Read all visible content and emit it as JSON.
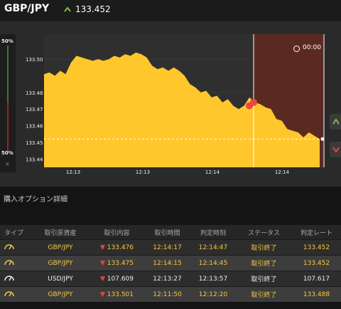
{
  "header": {
    "pair": "GBP/JPY",
    "price": "133.452"
  },
  "chart_data": {
    "type": "area",
    "yticks": [
      "133.50",
      "133.48",
      "133.47",
      "133.46",
      "133.45",
      "133.44"
    ],
    "xticks": [
      "12:13",
      "12:13",
      "12:14",
      "12:14"
    ],
    "ylim": [
      133.435,
      133.515
    ],
    "series": [
      {
        "values": [
          133.491,
          133.492,
          133.49,
          133.493,
          133.491,
          133.498,
          133.502,
          133.501,
          133.5,
          133.499,
          133.5,
          133.499,
          133.5,
          133.502,
          133.501,
          133.503,
          133.502,
          133.504,
          133.503,
          133.501,
          133.496,
          133.494,
          133.495,
          133.493,
          133.495,
          133.493,
          133.49,
          133.485,
          133.483,
          133.48,
          133.481,
          133.477,
          133.478,
          133.474,
          133.476,
          133.472,
          133.47,
          133.472,
          133.477,
          133.474,
          133.473,
          133.471,
          133.47,
          133.464,
          133.463,
          133.458,
          133.457,
          133.456,
          133.453,
          133.456,
          133.454,
          133.452
        ]
      }
    ]
  },
  "side": {
    "top": "50%",
    "bottom": "50%"
  },
  "timer": "00:00",
  "section_title": "購入オプション詳細",
  "table": {
    "headers": [
      "タイプ",
      "取引原資産",
      "取引内容",
      "取引時間",
      "判定時刻",
      "ステータス",
      "判定レート"
    ],
    "rows": [
      {
        "asset": "GBP/JPY",
        "content": "133.476",
        "time": "12:14:17",
        "judge": "12:14:47",
        "status": "取引終了",
        "rate": "133.452"
      },
      {
        "asset": "GBP/JPY",
        "content": "133.475",
        "time": "12:14:15",
        "judge": "12:14:45",
        "status": "取引終了",
        "rate": "133.452"
      },
      {
        "asset": "USD/JPY",
        "content": "107.609",
        "time": "12:13:27",
        "judge": "12:13:57",
        "status": "取引終了",
        "rate": "107.617"
      },
      {
        "asset": "GBP/JPY",
        "content": "133.501",
        "time": "12:11:50",
        "judge": "12:12:20",
        "status": "取引終了",
        "rate": "133.488"
      }
    ]
  },
  "colors": {
    "area": "#ffc72c",
    "highlight": "#5a2a22",
    "up": "#7fc241",
    "down": "#e8473f"
  }
}
